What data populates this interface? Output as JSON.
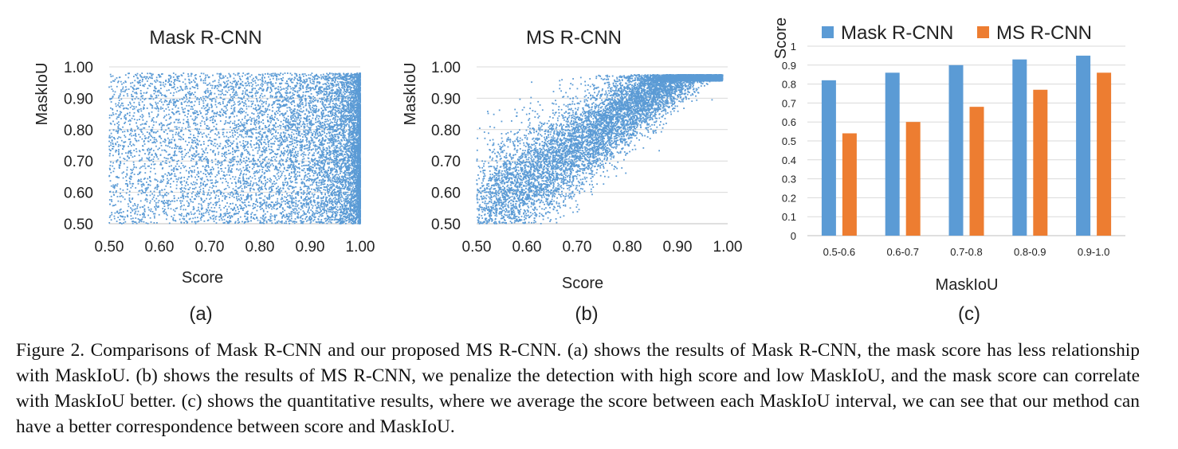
{
  "colors": {
    "mask_rcnn": "#5b9bd5",
    "ms_rcnn": "#ed7d31",
    "grid": "#d9d9d9",
    "axis": "#bfbfbf"
  },
  "panels": {
    "a": {
      "label": "(a)"
    },
    "b": {
      "label": "(b)"
    },
    "c": {
      "label": "(c)"
    }
  },
  "chart_data": [
    {
      "type": "scatter",
      "title": "Mask R-CNN",
      "xlabel": "Score",
      "ylabel": "MaskIoU",
      "xlim": [
        0.5,
        1.0
      ],
      "ylim": [
        0.5,
        1.0
      ],
      "xticks": [
        "0.50",
        "0.60",
        "0.70",
        "0.80",
        "0.90",
        "1.00"
      ],
      "yticks": [
        "0.50",
        "0.60",
        "0.70",
        "0.80",
        "0.90",
        "1.00"
      ],
      "grid": "horizontal",
      "color": "#5b9bd5",
      "distribution": "points spread roughly uniformly over MaskIoU 0.50-0.97 at every score, density increasing sharply as score approaches 1.00"
    },
    {
      "type": "scatter",
      "title": "MS R-CNN",
      "xlabel": "Score",
      "ylabel": "MaskIoU",
      "xlim": [
        0.5,
        1.0
      ],
      "ylim": [
        0.5,
        1.0
      ],
      "xticks": [
        "0.50",
        "0.60",
        "0.70",
        "0.80",
        "0.90",
        "1.00"
      ],
      "yticks": [
        "0.50",
        "0.60",
        "0.70",
        "0.80",
        "0.90",
        "1.00"
      ],
      "grid": "horizontal",
      "color": "#5b9bd5",
      "distribution": "points concentrated along a rising band: MaskIoU about 0.70 near score 0.60, about 0.85 near score 0.80, about 0.95 near score 0.95; few points beyond score 0.98"
    },
    {
      "type": "bar",
      "xlabel": "MaskIoU",
      "ylabel": "Score",
      "categories": [
        "0.5-0.6",
        "0.6-0.7",
        "0.7-0.8",
        "0.8-0.9",
        "0.9-1.0"
      ],
      "series": [
        {
          "name": "Mask R-CNN",
          "values": [
            0.82,
            0.86,
            0.9,
            0.93,
            0.95
          ],
          "color": "#5b9bd5"
        },
        {
          "name": "MS R-CNN",
          "values": [
            0.54,
            0.6,
            0.68,
            0.77,
            0.86
          ],
          "color": "#ed7d31"
        }
      ],
      "ylim": [
        0,
        1
      ],
      "yticks": [
        "0",
        "0.1",
        "0.2",
        "0.3",
        "0.4",
        "0.5",
        "0.6",
        "0.7",
        "0.8",
        "0.9",
        "1"
      ],
      "grid": "horizontal",
      "legend": "top"
    }
  ],
  "caption": "Figure 2. Comparisons of Mask R-CNN and our proposed MS R-CNN. (a) shows the results of Mask R-CNN, the mask score has less relationship with MaskIoU. (b) shows the results of MS R-CNN, we penalize the detection with high score and low MaskIoU, and the mask score can correlate with MaskIoU better. (c) shows the quantitative results, where we average the score between each MaskIoU interval, we can see that our method can have a better correspondence between score and MaskIoU."
}
